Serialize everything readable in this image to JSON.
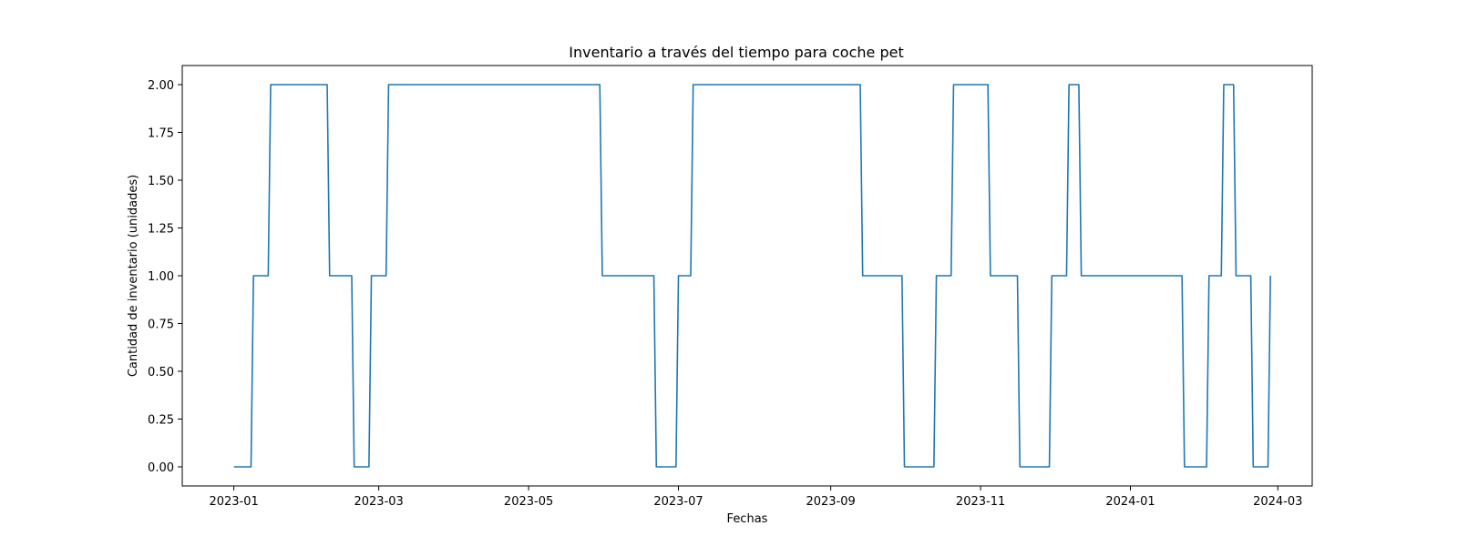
{
  "chart_data": {
    "type": "line",
    "title": "Inventario a través del tiempo para coche pet",
    "xlabel": "Fechas",
    "ylabel": "Cantidad de inventario (unidades)",
    "x_axis_type": "date",
    "xlim": [
      "2022-12-11",
      "2024-03-15"
    ],
    "ylim": [
      -0.1,
      2.1
    ],
    "y_ticks": [
      0.0,
      0.25,
      0.5,
      0.75,
      1.0,
      1.25,
      1.5,
      1.75,
      2.0
    ],
    "y_tick_labels": [
      "0.00",
      "0.25",
      "0.50",
      "0.75",
      "1.00",
      "1.25",
      "1.50",
      "1.75",
      "2.00"
    ],
    "x_ticks": [
      "2023-01-01",
      "2023-03-01",
      "2023-05-01",
      "2023-07-01",
      "2023-09-01",
      "2023-11-01",
      "2024-01-01",
      "2024-03-01"
    ],
    "x_tick_labels": [
      "2023-01",
      "2023-03",
      "2023-05",
      "2023-07",
      "2023-09",
      "2023-11",
      "2024-01",
      "2024-03"
    ],
    "grid": false,
    "legend": "none",
    "colors": {
      "line": "#1f77b4",
      "axes": "#000000",
      "background": "#ffffff"
    },
    "series": [
      {
        "x": [
          "2023-01-01",
          "2023-01-08",
          "2023-01-09",
          "2023-01-15",
          "2023-01-16",
          "2023-02-08",
          "2023-02-09",
          "2023-02-18",
          "2023-02-19",
          "2023-02-25",
          "2023-02-26",
          "2023-03-04",
          "2023-03-05",
          "2023-05-30",
          "2023-05-31",
          "2023-06-21",
          "2023-06-22",
          "2023-06-30",
          "2023-07-01",
          "2023-07-06",
          "2023-07-07",
          "2023-09-13",
          "2023-09-14",
          "2023-09-30",
          "2023-10-01",
          "2023-10-13",
          "2023-10-14",
          "2023-10-20",
          "2023-10-21",
          "2023-11-04",
          "2023-11-05",
          "2023-11-16",
          "2023-11-17",
          "2023-11-29",
          "2023-11-30",
          "2023-12-06",
          "2023-12-07",
          "2023-12-11",
          "2023-12-12",
          "2024-01-22",
          "2024-01-23",
          "2024-02-01",
          "2024-02-02",
          "2024-02-07",
          "2024-02-08",
          "2024-02-12",
          "2024-02-13",
          "2024-02-19",
          "2024-02-20",
          "2024-02-26",
          "2024-02-27"
        ],
        "values": [
          0,
          0,
          1,
          1,
          2,
          2,
          1,
          1,
          0,
          0,
          1,
          1,
          2,
          2,
          1,
          1,
          0,
          0,
          1,
          1,
          2,
          2,
          1,
          1,
          0,
          0,
          1,
          1,
          2,
          2,
          1,
          1,
          0,
          0,
          1,
          1,
          2,
          2,
          1,
          1,
          0,
          0,
          1,
          1,
          2,
          2,
          1,
          1,
          0,
          0,
          1
        ]
      }
    ]
  }
}
